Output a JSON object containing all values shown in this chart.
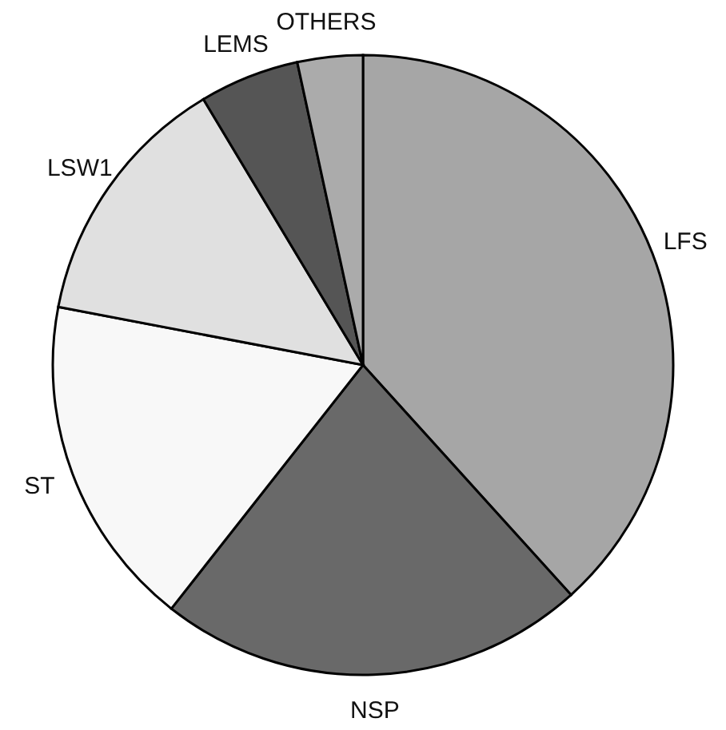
{
  "chart_data": {
    "type": "pie",
    "categories": [
      "LFS",
      "NSP",
      "ST",
      "LSW1",
      "LEMS",
      "OTHERS"
    ],
    "values": [
      38.3,
      22.3,
      17.4,
      13.4,
      5.2,
      3.4
    ],
    "colors": [
      "#a6a6a6",
      "#696969",
      "#f8f8f8",
      "#e0e0e0",
      "#555555",
      "#ababab"
    ]
  }
}
